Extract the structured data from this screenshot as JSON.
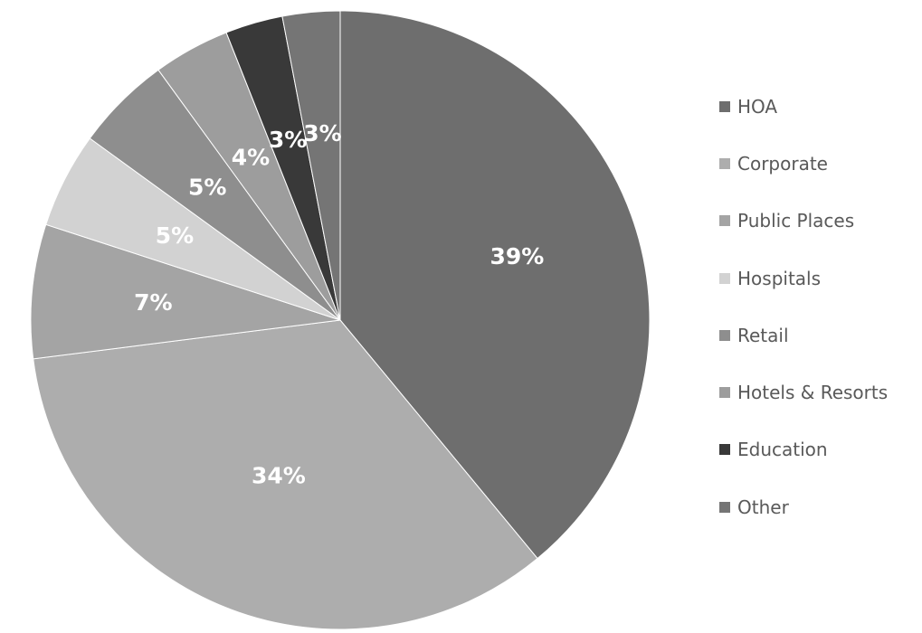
{
  "chart_data": {
    "type": "pie",
    "title": "",
    "legend_position": "right",
    "slices": [
      {
        "name": "HOA",
        "value": 39,
        "label": "39%",
        "color": "#6e6e6e"
      },
      {
        "name": "Corporate",
        "value": 34,
        "label": "34%",
        "color": "#adadad"
      },
      {
        "name": "Public Places",
        "value": 7,
        "label": "7%",
        "color": "#a4a4a4"
      },
      {
        "name": "Hospitals",
        "value": 5,
        "label": "5%",
        "color": "#d2d2d2"
      },
      {
        "name": "Retail",
        "value": 5,
        "label": "5%",
        "color": "#8e8e8e"
      },
      {
        "name": "Hotels & Resorts",
        "value": 4,
        "label": "4%",
        "color": "#9d9d9d"
      },
      {
        "name": "Education",
        "value": 3,
        "label": "3%",
        "color": "#393939"
      },
      {
        "name": "Other",
        "value": 3,
        "label": "3%",
        "color": "#757575"
      }
    ]
  }
}
